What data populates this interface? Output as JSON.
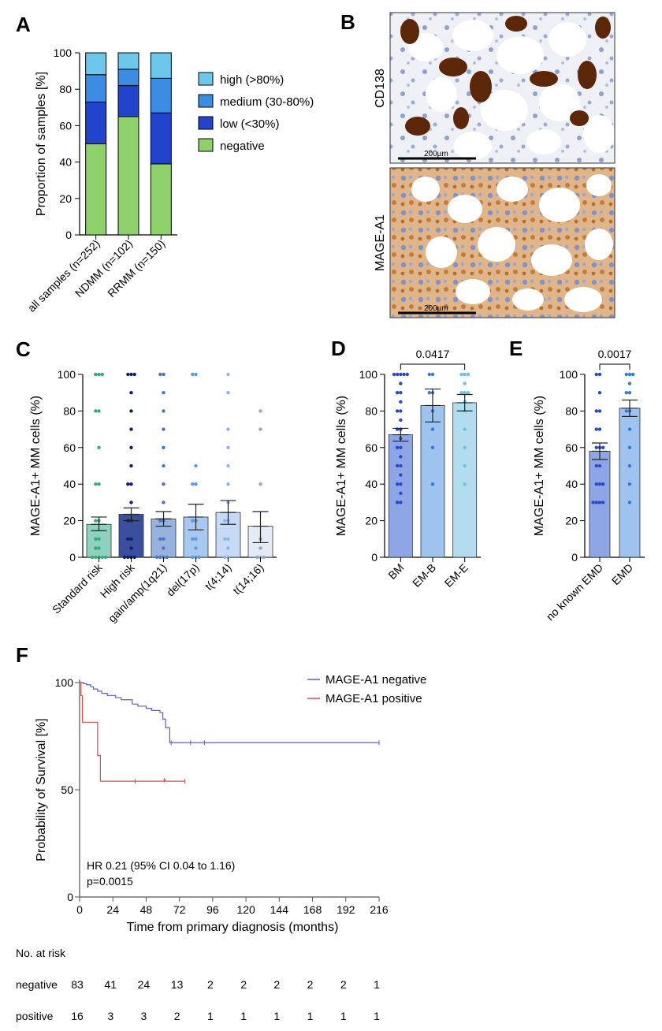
{
  "panels": {
    "a": "A",
    "b": "B",
    "c": "C",
    "d": "D",
    "e": "E",
    "f": "F"
  },
  "colors": {
    "high": "#6cc7ea",
    "medium": "#3d8ce3",
    "low": "#2244cc",
    "negative": "#8ed06c",
    "km_negative": "#5a5fd0",
    "km_positive": "#d8504e"
  },
  "images": {
    "b_top_label": "CD138",
    "b_bottom_label": "MAGE-A1",
    "scalebar_top": "200µm",
    "scalebar_bottom": "200µm"
  },
  "chart_data": [
    {
      "id": "A",
      "type": "bar",
      "stacked": true,
      "categories": [
        "all samples (n=252)",
        "NDMM (n=102)",
        "RRMM (n=150)"
      ],
      "series": [
        {
          "name": "negative",
          "values": [
            50,
            65,
            39
          ]
        },
        {
          "name": "low (<30%)",
          "values": [
            23,
            17,
            28
          ]
        },
        {
          "name": "medium (30-80%)",
          "values": [
            15,
            9,
            19
          ]
        },
        {
          "name": "high (>80%)",
          "values": [
            12,
            9,
            14
          ]
        }
      ],
      "legend_order": [
        "high (>80%)",
        "medium (30-80%)",
        "low (<30%)",
        "negative"
      ],
      "ylabel": "Proportion of samples [%]",
      "ylim": [
        0,
        100
      ],
      "yticks": [
        0,
        20,
        40,
        60,
        80,
        100
      ]
    },
    {
      "id": "C",
      "type": "bar",
      "categories": [
        "Standard risk",
        "High risk",
        "gain/amp(1q21)",
        "del(17p)",
        "t(4;14)",
        "t(14;16)"
      ],
      "values": [
        18,
        23.5,
        21,
        22,
        24.5,
        17
      ],
      "error_low": [
        14.5,
        20,
        17,
        15,
        18,
        8
      ],
      "error_high": [
        22,
        27,
        25,
        29,
        31,
        25
      ],
      "bar_colors": [
        "#8fd1bf",
        "#3a4f9e",
        "#98b2dd",
        "#a8c7f1",
        "#c6d9f5",
        "#e4ebf7"
      ],
      "dot_colors": [
        "#3aaa74",
        "#141e6e",
        "#4d74c0",
        "#5a9be0",
        "#8fb4e6",
        "#93a8b8"
      ],
      "points": [
        [
          100,
          100,
          100,
          80,
          80,
          60,
          40,
          40,
          20,
          20,
          10,
          10,
          5,
          5,
          0,
          0,
          0,
          0,
          0
        ],
        [
          100,
          100,
          100,
          90,
          80,
          70,
          60,
          50,
          40,
          40,
          30,
          20,
          20,
          10,
          10,
          5,
          0,
          0,
          0,
          0
        ],
        [
          100,
          100,
          90,
          80,
          70,
          60,
          50,
          40,
          30,
          20,
          20,
          10,
          10,
          5,
          0,
          0,
          0,
          0
        ],
        [
          100,
          100,
          50,
          40,
          40,
          20,
          20,
          10,
          10,
          5,
          0,
          0,
          0
        ],
        [
          100,
          90,
          70,
          60,
          50,
          40,
          30,
          20,
          20,
          10,
          10,
          5,
          0,
          0
        ],
        [
          80,
          70,
          40,
          10,
          5,
          0,
          0,
          0
        ]
      ],
      "ylabel": "MAGE-A1+ MM cells (%)",
      "ylim": [
        0,
        100
      ],
      "yticks": [
        0,
        20,
        40,
        60,
        80,
        100
      ]
    },
    {
      "id": "D",
      "type": "bar",
      "categories": [
        "BM",
        "EM-B",
        "EM-E"
      ],
      "values": [
        67,
        83,
        84.5
      ],
      "error_low": [
        63.5,
        74,
        80
      ],
      "error_high": [
        70.5,
        92,
        89
      ],
      "bar_colors": [
        "#8fa6e6",
        "#9ec3ee",
        "#b2ddee"
      ],
      "dot_colors": [
        "#2a49c9",
        "#3579d6",
        "#6cc2df"
      ],
      "points": [
        [
          100,
          100,
          100,
          100,
          100,
          95,
          90,
          90,
          85,
          80,
          80,
          75,
          70,
          70,
          65,
          60,
          60,
          55,
          50,
          50,
          45,
          40,
          40,
          35,
          30,
          30
        ],
        [
          100,
          100,
          90,
          90,
          80,
          70,
          60,
          40
        ],
        [
          100,
          100,
          100,
          95,
          90,
          90,
          90,
          85,
          80,
          70,
          60,
          50,
          40
        ]
      ],
      "significance": {
        "from": 0,
        "to": 2,
        "label": "0.0417"
      },
      "ylabel": "MAGE-A1+ MM cells (%)",
      "ylim": [
        0,
        100
      ],
      "yticks": [
        0,
        20,
        40,
        60,
        80,
        100
      ]
    },
    {
      "id": "E",
      "type": "bar",
      "categories": [
        "no known EMD",
        "EMD"
      ],
      "values": [
        58,
        81.5
      ],
      "error_low": [
        53.5,
        77
      ],
      "error_high": [
        62.5,
        86
      ],
      "bar_colors": [
        "#8fa6e6",
        "#9ec3ee"
      ],
      "dot_colors": [
        "#2a49c9",
        "#3579d6"
      ],
      "points": [
        [
          100,
          100,
          90,
          80,
          80,
          70,
          70,
          60,
          60,
          60,
          50,
          50,
          40,
          40,
          40,
          30,
          30,
          30,
          30
        ],
        [
          100,
          100,
          100,
          95,
          90,
          90,
          80,
          80,
          70,
          60,
          50,
          40,
          30
        ]
      ],
      "significance": {
        "from": 0,
        "to": 1,
        "label": "0.0017"
      },
      "ylabel": "MAGE-A1+ MM cells (%)",
      "ylim": [
        0,
        100
      ],
      "yticks": [
        0,
        20,
        40,
        60,
        80,
        100
      ]
    },
    {
      "id": "F",
      "type": "line",
      "series": [
        {
          "name": "MAGE-A1 negative",
          "x": [
            0,
            3,
            5,
            8,
            10,
            13,
            16,
            20,
            26,
            30,
            38,
            42,
            48,
            52,
            54,
            58,
            60,
            62,
            65,
            216
          ],
          "y": [
            100,
            99.5,
            99,
            98,
            97,
            96,
            95,
            94,
            93,
            92,
            90,
            89,
            88,
            87,
            87,
            86,
            83,
            79,
            72,
            72
          ]
        },
        {
          "name": "MAGE-A1 positive",
          "x": [
            0,
            1,
            2,
            13,
            15,
            61,
            61,
            62,
            76
          ],
          "y": [
            100,
            94,
            81.5,
            66,
            54,
            54,
            54.5,
            54,
            54
          ]
        }
      ],
      "xlabel": "Time from primary diagnosis (months)",
      "ylabel": "Probability of Survival [%]",
      "xticks": [
        0,
        24,
        48,
        72,
        96,
        120,
        144,
        168,
        192,
        216
      ],
      "xlim": [
        0,
        216
      ],
      "ylim": [
        0,
        100
      ],
      "yticks": [
        0,
        50,
        100
      ],
      "annotation": [
        "HR 0.21 (95% CI 0.04 to 1.16)",
        "p=0.0015"
      ]
    }
  ],
  "risk_table": {
    "title": "No. at risk",
    "rows": [
      {
        "label": "negative",
        "values": [
          "83",
          "41",
          "24",
          "13",
          "2",
          "2",
          "2",
          "2",
          "2",
          "1"
        ]
      },
      {
        "label": "positive",
        "values": [
          "16",
          "3",
          "3",
          "2",
          "1",
          "1",
          "1",
          "1",
          "1",
          "1"
        ]
      }
    ]
  }
}
